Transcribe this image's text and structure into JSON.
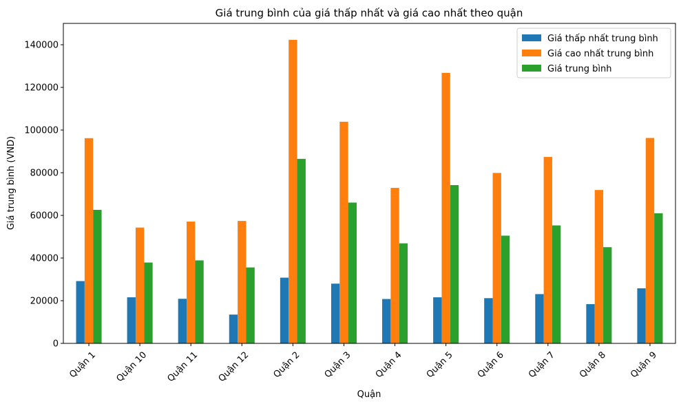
{
  "chart_data": {
    "type": "bar",
    "title": "Giá trung bình của giá thấp nhất và giá cao nhất theo quận",
    "xlabel": "Quận",
    "ylabel": "Giá trung bình (VND)",
    "categories": [
      "Quận 1",
      "Quận 10",
      "Quận 11",
      "Quận 12",
      "Quận 2",
      "Quận 3",
      "Quận 4",
      "Quận 5",
      "Quận 6",
      "Quận 7",
      "Quận 8",
      "Quận 9"
    ],
    "ylim": [
      0,
      150000
    ],
    "yticks": [
      0,
      20000,
      40000,
      60000,
      80000,
      100000,
      120000,
      140000
    ],
    "ytick_labels": [
      "0",
      "20000",
      "40000",
      "60000",
      "80000",
      "100000",
      "120000",
      "140000"
    ],
    "legend_position": "top-right",
    "grid": false,
    "series": [
      {
        "name": "Giá thấp nhất trung bình",
        "color": "#1f77b4",
        "values": [
          29200,
          21600,
          20900,
          13500,
          30800,
          28000,
          20800,
          21600,
          21200,
          23100,
          18400,
          25800
        ]
      },
      {
        "name": "Giá cao nhất trung bình",
        "color": "#ff7f0e",
        "values": [
          96200,
          54300,
          57100,
          57400,
          142300,
          103900,
          72900,
          126800,
          79900,
          87400,
          71900,
          96300
        ]
      },
      {
        "name": "Giá trung bình",
        "color": "#2ca02c",
        "values": [
          62600,
          37900,
          38900,
          35600,
          86500,
          66000,
          46900,
          74200,
          50500,
          55300,
          45100,
          61000
        ]
      }
    ]
  }
}
